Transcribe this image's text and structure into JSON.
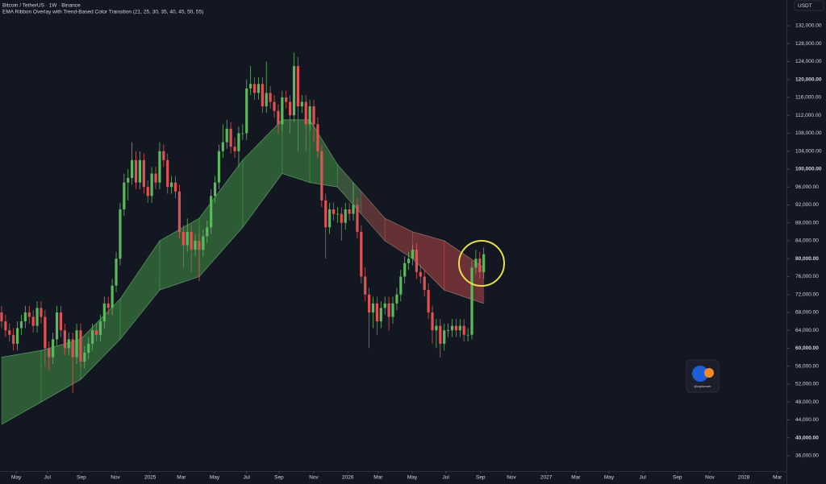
{
  "chart_data": {
    "type": "candlestick",
    "title": "Bitcoin / TetherUS · 1W · Binance",
    "subtitle": "EMA Ribbon Overlay with Trend-Based Color Transition (21, 25, 30, 35, 40, 45, 50, 55)",
    "currency_label": "USDT",
    "watermark": "@cryptorover",
    "up_color": "#5cb85c",
    "down_color": "#e05252",
    "x": [
      0,
      1,
      2,
      3,
      4,
      5,
      6,
      7,
      8,
      9,
      10,
      11,
      12,
      13,
      14,
      15,
      16,
      17,
      18,
      19,
      20,
      21,
      22,
      23,
      24,
      25,
      26,
      27,
      28,
      29,
      30,
      31,
      32,
      33,
      34,
      35,
      36,
      37,
      38,
      39,
      40,
      41,
      42,
      43,
      44,
      45,
      46,
      47,
      48,
      49,
      50,
      51,
      52,
      53,
      54,
      55,
      56,
      57,
      58,
      59,
      60,
      61,
      62,
      63,
      64,
      65,
      66,
      67,
      68,
      69,
      70,
      71,
      72,
      73,
      74,
      75,
      76,
      77,
      78,
      79,
      80,
      81,
      82,
      83,
      84,
      85,
      86,
      87,
      88,
      89,
      90,
      91,
      92,
      93,
      94,
      95,
      96,
      97,
      98,
      99,
      100,
      101,
      102,
      103,
      104,
      105,
      106,
      107,
      108,
      109,
      110,
      111,
      112,
      113,
      114,
      115,
      116,
      117,
      118,
      119,
      120,
      121,
      122
    ],
    "ohlc": [
      [
        68000,
        69500,
        64500,
        66000
      ],
      [
        66000,
        67500,
        62500,
        64000
      ],
      [
        64000,
        65500,
        61500,
        63000
      ],
      [
        63000,
        64500,
        59500,
        61000
      ],
      [
        61000,
        66000,
        59500,
        64500
      ],
      [
        64500,
        67500,
        63000,
        66000
      ],
      [
        66000,
        69500,
        64500,
        68000
      ],
      [
        68000,
        69500,
        65500,
        67000
      ],
      [
        67000,
        68500,
        63500,
        65000
      ],
      [
        65000,
        70500,
        63500,
        69000
      ],
      [
        69000,
        70500,
        65500,
        67000
      ],
      [
        67000,
        68500,
        56000,
        60000
      ],
      [
        60000,
        61500,
        55000,
        58000
      ],
      [
        58000,
        63500,
        56500,
        62000
      ],
      [
        62000,
        69500,
        60500,
        68000
      ],
      [
        68000,
        69500,
        62500,
        64000
      ],
      [
        64000,
        65500,
        58500,
        60000
      ],
      [
        60000,
        63500,
        58500,
        62000
      ],
      [
        62000,
        63500,
        50000,
        58000
      ],
      [
        58000,
        65500,
        56500,
        64000
      ],
      [
        64000,
        65500,
        55500,
        57000
      ],
      [
        57000,
        60500,
        55500,
        59000
      ],
      [
        59000,
        62500,
        57500,
        61000
      ],
      [
        61000,
        65500,
        59500,
        64000
      ],
      [
        64000,
        65500,
        61500,
        63000
      ],
      [
        63000,
        67500,
        61500,
        66000
      ],
      [
        66000,
        71500,
        64500,
        70000
      ],
      [
        70000,
        71500,
        67500,
        69000
      ],
      [
        69000,
        75500,
        67500,
        74000
      ],
      [
        74000,
        81500,
        72500,
        80000
      ],
      [
        80000,
        92500,
        78500,
        91000
      ],
      [
        91000,
        99000,
        89500,
        97000
      ],
      [
        97000,
        100000,
        93000,
        98000
      ],
      [
        98000,
        106000,
        96500,
        102000
      ],
      [
        102000,
        104000,
        95500,
        97000
      ],
      [
        97000,
        104000,
        95500,
        102000
      ],
      [
        102000,
        103500,
        94500,
        96000
      ],
      [
        96000,
        97500,
        92500,
        94000
      ],
      [
        94000,
        100500,
        92500,
        99000
      ],
      [
        99000,
        100500,
        95500,
        97000
      ],
      [
        97000,
        106000,
        95500,
        104000
      ],
      [
        104000,
        105500,
        100500,
        102000
      ],
      [
        102000,
        103500,
        94500,
        96000
      ],
      [
        96000,
        98500,
        94500,
        97000
      ],
      [
        97000,
        98500,
        93500,
        95000
      ],
      [
        95000,
        96500,
        84500,
        86000
      ],
      [
        86000,
        87500,
        78000,
        83000
      ],
      [
        83000,
        89000,
        81500,
        86000
      ],
      [
        86000,
        87500,
        77000,
        82000
      ],
      [
        82000,
        85500,
        80500,
        84000
      ],
      [
        84000,
        85500,
        75000,
        82000
      ],
      [
        82000,
        86500,
        80500,
        85000
      ],
      [
        85000,
        88500,
        83500,
        87000
      ],
      [
        87000,
        95500,
        85500,
        94000
      ],
      [
        94000,
        98500,
        92500,
        97000
      ],
      [
        97000,
        105500,
        95500,
        104000
      ],
      [
        104000,
        110000,
        102500,
        106000
      ],
      [
        106000,
        111000,
        104500,
        109000
      ],
      [
        109000,
        110500,
        103500,
        105000
      ],
      [
        105000,
        107000,
        102500,
        104000
      ],
      [
        104000,
        109500,
        100500,
        108000
      ],
      [
        108000,
        110000,
        106500,
        108000
      ],
      [
        108000,
        120000,
        106500,
        118000
      ],
      [
        118000,
        123000,
        116500,
        119000
      ],
      [
        119000,
        120500,
        115500,
        117000
      ],
      [
        117000,
        120500,
        115500,
        119000
      ],
      [
        119000,
        120500,
        112500,
        114000
      ],
      [
        114000,
        124000,
        112500,
        117000
      ],
      [
        117000,
        118500,
        113500,
        115000
      ],
      [
        115000,
        116500,
        111500,
        113000
      ],
      [
        113000,
        114500,
        108000,
        110000
      ],
      [
        110000,
        117500,
        108500,
        116000
      ],
      [
        116000,
        117500,
        113500,
        115000
      ],
      [
        115000,
        116500,
        108000,
        112000
      ],
      [
        112000,
        126000,
        110500,
        123000
      ],
      [
        123000,
        125000,
        104000,
        114000
      ],
      [
        114000,
        116500,
        112500,
        115000
      ],
      [
        115000,
        116500,
        104000,
        110000
      ],
      [
        110000,
        115500,
        108500,
        114000
      ],
      [
        114000,
        115500,
        106000,
        110000
      ],
      [
        110000,
        111500,
        102500,
        104000
      ],
      [
        104000,
        105500,
        91500,
        93000
      ],
      [
        93000,
        94500,
        80000,
        87000
      ],
      [
        87000,
        92500,
        85500,
        91000
      ],
      [
        91000,
        92500,
        88500,
        90000
      ],
      [
        90000,
        91500,
        88000,
        90000
      ],
      [
        90000,
        91500,
        84000,
        88000
      ],
      [
        88000,
        92500,
        86500,
        91000
      ],
      [
        91000,
        92500,
        88500,
        90000
      ],
      [
        90000,
        97000,
        88500,
        92000
      ],
      [
        92000,
        93500,
        84500,
        86000
      ],
      [
        86000,
        87500,
        74500,
        76000
      ],
      [
        76000,
        78000,
        70500,
        72000
      ],
      [
        72000,
        73500,
        60000,
        68000
      ],
      [
        68000,
        71500,
        64500,
        70000
      ],
      [
        70000,
        71500,
        63000,
        66000
      ],
      [
        66000,
        70500,
        64500,
        69000
      ],
      [
        69000,
        71500,
        67500,
        70000
      ],
      [
        70000,
        71500,
        64000,
        67000
      ],
      [
        67000,
        71500,
        65500,
        70000
      ],
      [
        70000,
        73500,
        68500,
        72000
      ],
      [
        72000,
        77500,
        70500,
        76000
      ],
      [
        76000,
        80500,
        74500,
        79000
      ],
      [
        79000,
        81500,
        77500,
        80000
      ],
      [
        80000,
        83000,
        78500,
        82000
      ],
      [
        82000,
        83500,
        75500,
        77000
      ],
      [
        77000,
        78500,
        74500,
        76000
      ],
      [
        76000,
        77500,
        71500,
        73000
      ],
      [
        73000,
        74500,
        66500,
        68000
      ],
      [
        68000,
        69500,
        61000,
        64000
      ],
      [
        64000,
        66500,
        60000,
        65000
      ],
      [
        65000,
        66500,
        58000,
        61000
      ],
      [
        61000,
        65500,
        59500,
        64000
      ],
      [
        64000,
        65500,
        62500,
        64000
      ],
      [
        64000,
        66500,
        62500,
        65000
      ],
      [
        65000,
        66500,
        62500,
        64000
      ],
      [
        64000,
        66500,
        62500,
        65000
      ],
      [
        65000,
        66500,
        61500,
        63000
      ],
      [
        63000,
        64500,
        61500,
        63000
      ],
      [
        63000,
        79500,
        62000,
        78000
      ],
      [
        78000,
        82000,
        76500,
        80000
      ],
      [
        80000,
        81500,
        75500,
        77000
      ],
      [
        77000,
        82500,
        75500,
        81000
      ]
    ],
    "ribbon": {
      "x": [
        0,
        10,
        20,
        30,
        40,
        50,
        61,
        71,
        78,
        85,
        91,
        97,
        104,
        112,
        122
      ],
      "upper": [
        58000,
        59500,
        62000,
        71000,
        84000,
        89000,
        102000,
        111000,
        111000,
        101000,
        95000,
        89000,
        86000,
        84000,
        78000
      ],
      "lower": [
        43000,
        48000,
        53000,
        62000,
        73000,
        76000,
        87000,
        99000,
        97000,
        96000,
        90000,
        84000,
        80000,
        73000,
        70000
      ],
      "colors": [
        "#4caf50",
        "#4caf50",
        "#4caf50",
        "#4caf50",
        "#4caf50",
        "#4caf50",
        "#4caf50",
        "#4caf50",
        "#4caf50",
        "#6a9a5a",
        "#b0574f",
        "#c94f4c",
        "#d9534f",
        "#d9534f",
        "#d9534f"
      ]
    },
    "xlim": [
      -0.4,
      198.6
    ],
    "ylim": [
      32570,
      137750
    ],
    "xticks": [
      {
        "value": 3.7,
        "label": "May"
      },
      {
        "value": 11.6,
        "label": "Jul"
      },
      {
        "value": 20.2,
        "label": "Sep"
      },
      {
        "value": 28.8,
        "label": "Nov"
      },
      {
        "value": 37.6,
        "label": "2025"
      },
      {
        "value": 45.5,
        "label": "Mar"
      },
      {
        "value": 53.9,
        "label": "May"
      },
      {
        "value": 62,
        "label": "Jul"
      },
      {
        "value": 70.2,
        "label": "Sep"
      },
      {
        "value": 79,
        "label": "Nov"
      },
      {
        "value": 87.6,
        "label": "2026"
      },
      {
        "value": 95.3,
        "label": "Mar"
      },
      {
        "value": 103.9,
        "label": "May"
      },
      {
        "value": 112.4,
        "label": "Jul"
      },
      {
        "value": 121.2,
        "label": "Sep"
      },
      {
        "value": 129,
        "label": "Nov"
      },
      {
        "value": 137.8,
        "label": "2027"
      },
      {
        "value": 145.3,
        "label": "Mar"
      },
      {
        "value": 153.7,
        "label": "May"
      },
      {
        "value": 162.2,
        "label": "Jul"
      },
      {
        "value": 171,
        "label": "Sep"
      },
      {
        "value": 179.2,
        "label": "Nov"
      },
      {
        "value": 187.8,
        "label": "2028"
      },
      {
        "value": 196.3,
        "label": "Mar"
      }
    ],
    "yticks": [
      {
        "value": 36000,
        "label": "36,000.00"
      },
      {
        "value": 40000,
        "label": "40,000.00"
      },
      {
        "value": 44000,
        "label": "44,000.00"
      },
      {
        "value": 48000,
        "label": "48,000.00"
      },
      {
        "value": 52000,
        "label": "52,000.00"
      },
      {
        "value": 56000,
        "label": "56,000.00"
      },
      {
        "value": 60000,
        "label": "60,000.00"
      },
      {
        "value": 64000,
        "label": "64,000.00"
      },
      {
        "value": 68000,
        "label": "68,000.00"
      },
      {
        "value": 72000,
        "label": "72,000.00"
      },
      {
        "value": 76000,
        "label": "76,000.00"
      },
      {
        "value": 80000,
        "label": "80,000.00"
      },
      {
        "value": 84000,
        "label": "84,000.00"
      },
      {
        "value": 88000,
        "label": "88,000.00"
      },
      {
        "value": 92000,
        "label": "92,000.00"
      },
      {
        "value": 96000,
        "label": "96,000.00"
      },
      {
        "value": 100000,
        "label": "100,000.00"
      },
      {
        "value": 104000,
        "label": "104,000.00"
      },
      {
        "value": 108000,
        "label": "108,000.00"
      },
      {
        "value": 112000,
        "label": "112,000.00"
      },
      {
        "value": 116000,
        "label": "116,000.00"
      },
      {
        "value": 120000,
        "label": "120,000.00"
      },
      {
        "value": 124000,
        "label": "124,000.00"
      },
      {
        "value": 128000,
        "label": "128,000.00"
      },
      {
        "value": 132000,
        "label": "132,000.00"
      }
    ],
    "grid": false
  }
}
